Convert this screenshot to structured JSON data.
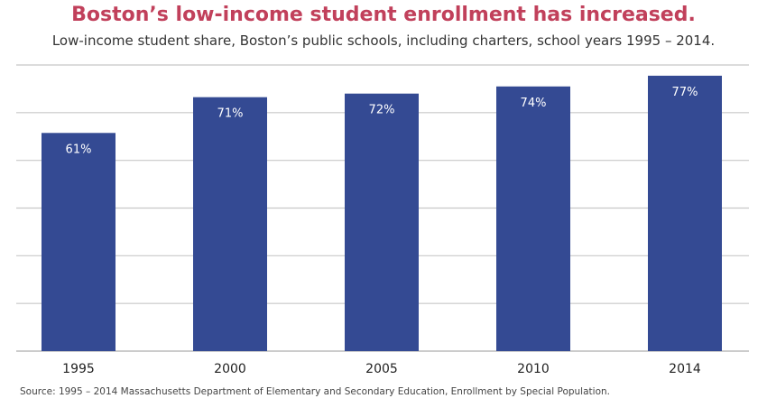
{
  "chart_data": {
    "type": "bar",
    "title": "Boston’s low-income student enrollment has increased.",
    "subtitle": "Low-income student share, Boston’s public schools, including charters, school years 1995 – 2014.",
    "categories": [
      "1995",
      "2000",
      "2005",
      "2010",
      "2014"
    ],
    "values": [
      61,
      71,
      72,
      74,
      77
    ],
    "data_labels": [
      "61%",
      "71%",
      "72%",
      "74%",
      "77%"
    ],
    "ylim": [
      0,
      80
    ],
    "grid": true,
    "bar_color": "#344a93",
    "title_color": "#c1405b",
    "source": "Source: 1995 – 2014 Massachusetts Department of Elementary and Secondary Education, Enrollment by Special Population."
  }
}
